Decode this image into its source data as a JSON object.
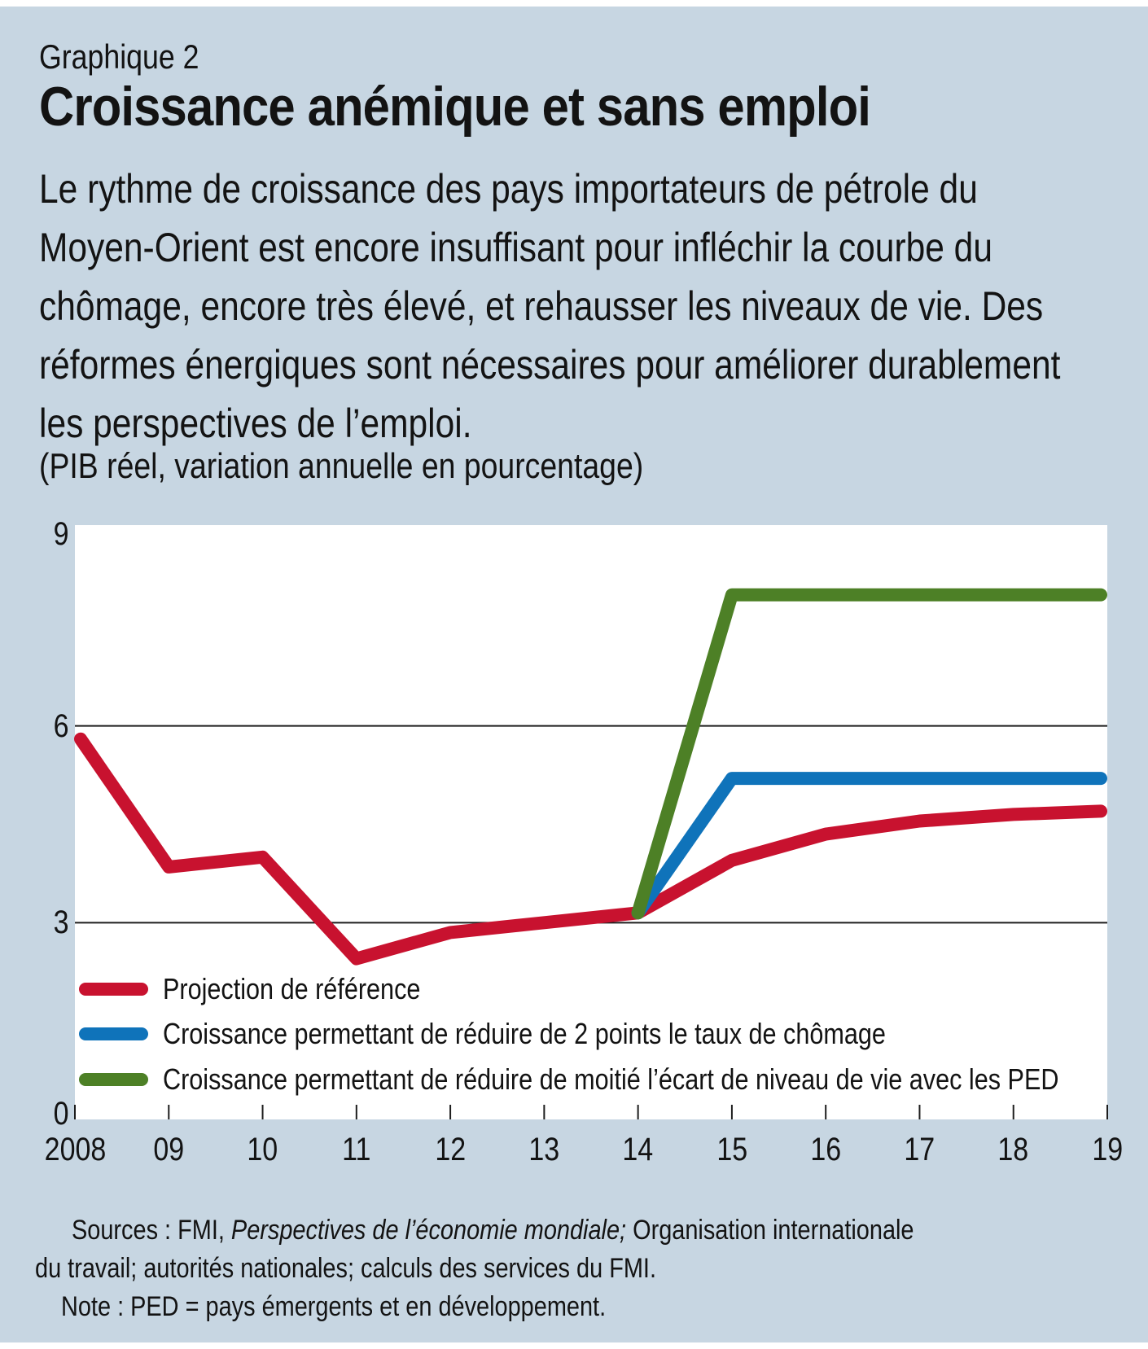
{
  "page": {
    "background": "#c7d6e2",
    "label": "Graphique 2",
    "title": "Croissance anémique et sans emploi",
    "intro_lines": [
      "Le rythme de croissance des pays importateurs de pétrole du",
      "Moyen-Orient est encore insuffisant pour infléchir la courbe du",
      "chômage, encore très élevé, et rehausser les niveaux de vie. Des",
      "réformes énergiques sont nécessaires pour améliorer durablement",
      "les perspectives de l’emploi."
    ],
    "axis_note": "(PIB réel, variation annuelle en pourcentage)"
  },
  "chart_data": {
    "type": "line",
    "title": "Croissance anémique et sans emploi",
    "unit_note": "(PIB réel, variation annuelle en pourcentage)",
    "x_labels": [
      "2008",
      "09",
      "10",
      "11",
      "12",
      "13",
      "14",
      "15",
      "16",
      "17",
      "18",
      "19"
    ],
    "x_years": [
      2008,
      2009,
      2010,
      2011,
      2012,
      2013,
      2014,
      2015,
      2016,
      2017,
      2018,
      2019
    ],
    "y_ticks": [
      0,
      3,
      6,
      9
    ],
    "ylim": [
      0,
      9
    ],
    "gridlines_at": [
      3,
      6
    ],
    "grid_color": "#1d1d1d",
    "plot_background": "#ffffff",
    "legend_position": "bottom-left-inside",
    "series": [
      {
        "name": "Projection de référence",
        "color": "#c8122f",
        "points": [
          [
            2008,
            5.8
          ],
          [
            2009,
            3.85
          ],
          [
            2010,
            4.0
          ],
          [
            2011,
            2.45
          ],
          [
            2012,
            2.85
          ],
          [
            2013,
            3.0
          ],
          [
            2014,
            3.15
          ],
          [
            2015,
            3.95
          ],
          [
            2016,
            4.35
          ],
          [
            2017,
            4.55
          ],
          [
            2018,
            4.65
          ],
          [
            2019,
            4.7
          ]
        ]
      },
      {
        "name": "Croissance permettant de réduire de 2 points le taux de chômage",
        "color": "#0f73ba",
        "points": [
          [
            2014,
            3.15
          ],
          [
            2015,
            5.2
          ],
          [
            2016,
            5.2
          ],
          [
            2017,
            5.2
          ],
          [
            2018,
            5.2
          ],
          [
            2019,
            5.2
          ]
        ]
      },
      {
        "name": "Croissance permettant de réduire de moitié l’écart de niveau de vie avec les PED",
        "color": "#4d8026",
        "points": [
          [
            2014,
            3.15
          ],
          [
            2015,
            8.0
          ],
          [
            2016,
            8.0
          ],
          [
            2017,
            8.0
          ],
          [
            2018,
            8.0
          ],
          [
            2019,
            8.0
          ]
        ]
      }
    ]
  },
  "footer": {
    "line1_prefix": "Sources : FMI, ",
    "line1_italic": "Perspectives de l’économie mondiale;",
    "line1_suffix": " Organisation internationale",
    "line2": "du travail; autorités nationales; calculs des services du FMI.",
    "line3": "Note : PED = pays émergents et en développement."
  }
}
